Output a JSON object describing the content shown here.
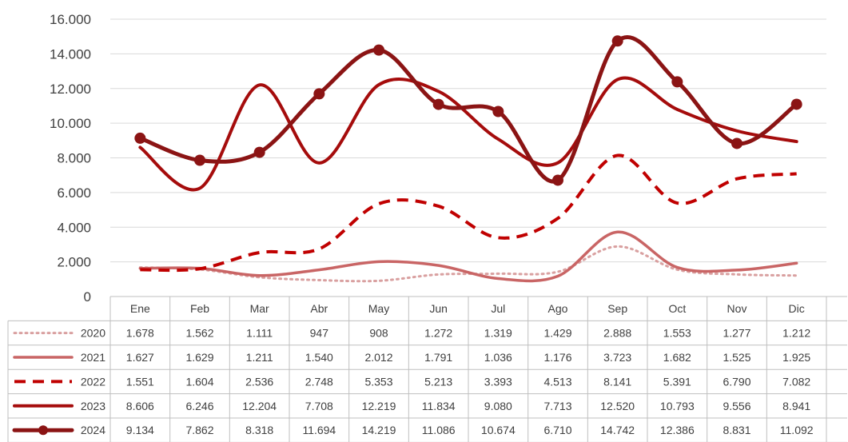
{
  "chart_data": {
    "type": "line",
    "categories": [
      "Ene",
      "Feb",
      "Mar",
      "Abr",
      "May",
      "Jun",
      "Jul",
      "Ago",
      "Sep",
      "Oct",
      "Nov",
      "Dic"
    ],
    "y_ticks": [
      "0",
      "2.000",
      "4.000",
      "6.000",
      "8.000",
      "10.000",
      "12.000",
      "14.000",
      "16.000"
    ],
    "ylim": [
      0,
      16000
    ],
    "grid": true,
    "legend": "data-table",
    "series": [
      {
        "name": "2020",
        "color": "#d9a0a0",
        "style": "dotted",
        "marker": false,
        "values": [
          1678,
          1562,
          1111,
          947,
          908,
          1272,
          1319,
          1429,
          2888,
          1553,
          1277,
          1212
        ],
        "labels": [
          "1.678",
          "1.562",
          "1.111",
          "947",
          "908",
          "1.272",
          "1.319",
          "1.429",
          "2.888",
          "1.553",
          "1.277",
          "1.212"
        ]
      },
      {
        "name": "2021",
        "color": "#c96565",
        "style": "solid",
        "marker": false,
        "values": [
          1627,
          1629,
          1211,
          1540,
          2012,
          1791,
          1036,
          1176,
          3723,
          1682,
          1525,
          1925
        ],
        "labels": [
          "1.627",
          "1.629",
          "1.211",
          "1.540",
          "2.012",
          "1.791",
          "1.036",
          "1.176",
          "3.723",
          "1.682",
          "1.525",
          "1.925"
        ]
      },
      {
        "name": "2022",
        "color": "#c00000",
        "style": "dashed",
        "marker": false,
        "values": [
          1551,
          1604,
          2536,
          2748,
          5353,
          5213,
          3393,
          4513,
          8141,
          5391,
          6790,
          7082
        ],
        "labels": [
          "1.551",
          "1.604",
          "2.536",
          "2.748",
          "5.353",
          "5.213",
          "3.393",
          "4.513",
          "8.141",
          "5.391",
          "6.790",
          "7.082"
        ]
      },
      {
        "name": "2023",
        "color": "#a50c0c",
        "style": "solid",
        "marker": false,
        "values": [
          8606,
          6246,
          12204,
          7708,
          12219,
          11834,
          9080,
          7713,
          12520,
          10793,
          9556,
          8941
        ],
        "labels": [
          "8.606",
          "6.246",
          "12.204",
          "7.708",
          "12.219",
          "11.834",
          "9.080",
          "7.713",
          "12.520",
          "10.793",
          "9.556",
          "8.941"
        ]
      },
      {
        "name": "2024",
        "color": "#8b1414",
        "style": "solid",
        "marker": true,
        "values": [
          9134,
          7862,
          8318,
          11694,
          14219,
          11086,
          10674,
          6710,
          14742,
          12386,
          8831,
          11092
        ],
        "labels": [
          "9.134",
          "7.862",
          "8.318",
          "11.694",
          "14.219",
          "11.086",
          "10.674",
          "6.710",
          "14.742",
          "12.386",
          "8.831",
          "11.092"
        ]
      }
    ]
  }
}
